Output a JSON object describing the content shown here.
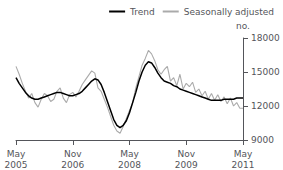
{
  "chart_data": {
    "type": "line",
    "title": "",
    "ylabel": "no.",
    "categories": [
      "May\n2005",
      null,
      null,
      null,
      null,
      null,
      null,
      null,
      null,
      null,
      null,
      null,
      null,
      null,
      null,
      null,
      null,
      null,
      "Nov\n2006",
      null,
      null,
      null,
      null,
      null,
      null,
      null,
      null,
      null,
      null,
      null,
      null,
      null,
      null,
      null,
      null,
      null,
      "May\n2008",
      null,
      null,
      null,
      null,
      null,
      null,
      null,
      null,
      null,
      null,
      null,
      null,
      null,
      null,
      null,
      null,
      null,
      "Nov\n2009",
      null,
      null,
      null,
      null,
      null,
      null,
      null,
      null,
      null,
      null,
      null,
      null,
      null,
      null,
      null,
      null,
      null,
      "May\n2011"
    ],
    "series": [
      {
        "name": "Trend",
        "color": "#000000",
        "values": [
          14500,
          14000,
          13600,
          13200,
          12900,
          12700,
          12600,
          12600,
          12700,
          12800,
          12900,
          13000,
          13100,
          13200,
          13200,
          13100,
          13000,
          12900,
          12900,
          13000,
          13100,
          13300,
          13600,
          13900,
          14200,
          14400,
          14300,
          13900,
          13200,
          12400,
          11600,
          10800,
          10300,
          10100,
          10300,
          10700,
          11400,
          12300,
          13200,
          14200,
          15000,
          15600,
          15900,
          15800,
          15400,
          14900,
          14500,
          14200,
          14100,
          14000,
          13800,
          13700,
          13500,
          13400,
          13300,
          13200,
          13100,
          13000,
          12900,
          12800,
          12700,
          12600,
          12500,
          12500,
          12500,
          12500,
          12600,
          12600,
          12600,
          12600,
          12700,
          12700,
          12700
        ]
      },
      {
        "name": "Seasonally adjusted",
        "color": "#aaaaaa",
        "values": [
          15500,
          14800,
          14000,
          13300,
          12700,
          13100,
          12300,
          11900,
          12600,
          13100,
          12900,
          12400,
          12600,
          13300,
          13600,
          12700,
          12300,
          13000,
          13200,
          12800,
          13300,
          13900,
          14300,
          14700,
          15100,
          14900,
          13600,
          13300,
          12600,
          11900,
          11100,
          10300,
          9800,
          9600,
          10200,
          10900,
          11600,
          12300,
          13600,
          14600,
          15600,
          16200,
          16900,
          16600,
          16000,
          15200,
          14800,
          15200,
          15500,
          14200,
          14500,
          13800,
          14800,
          13500,
          14000,
          13700,
          14100,
          13200,
          13500,
          12900,
          13300,
          12600,
          13100,
          12500,
          13000,
          12400,
          12800,
          12200,
          12700,
          12000,
          12300,
          11800,
          11800
        ]
      }
    ],
    "ylim": [
      9000,
      18000
    ],
    "yticks": [
      9000,
      12000,
      15000,
      18000
    ],
    "grid": false,
    "legend": "upper right"
  }
}
